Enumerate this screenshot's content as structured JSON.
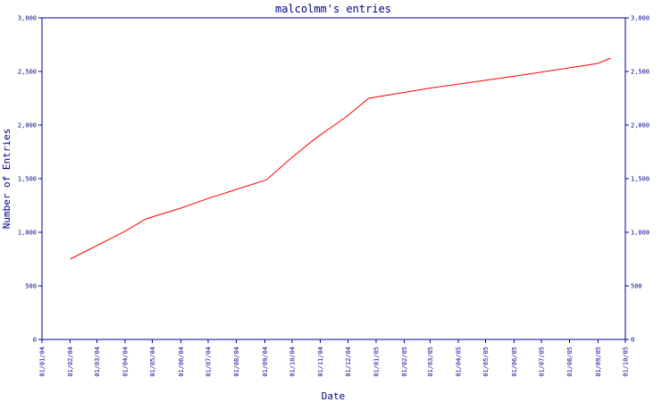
{
  "chart_data": {
    "type": "line",
    "title": "malcolmm's entries",
    "xlabel": "Date",
    "ylabel": "Number of Entries",
    "ylim": [
      0,
      3000
    ],
    "yticks": [
      0,
      500,
      1000,
      1500,
      2000,
      2500,
      3000
    ],
    "ytick_labels": [
      "0",
      "500",
      "1,000",
      "1,500",
      "2,000",
      "2,500",
      "3,000"
    ],
    "xlim": [
      "2004-01-01",
      "2005-10-01"
    ],
    "xtick_dates": [
      "2004-01-01",
      "2004-02-01",
      "2004-03-01",
      "2004-04-01",
      "2004-05-01",
      "2004-06-01",
      "2004-07-01",
      "2004-08-01",
      "2004-09-01",
      "2004-10-01",
      "2004-11-01",
      "2004-12-01",
      "2005-01-01",
      "2005-02-01",
      "2005-03-01",
      "2005-04-01",
      "2005-05-01",
      "2005-06-01",
      "2005-07-01",
      "2005-08-01",
      "2005-09-01",
      "2005-10-01"
    ],
    "xtick_labels": [
      "01/01/04",
      "01/02/04",
      "01/03/04",
      "01/04/04",
      "01/05/04",
      "01/06/04",
      "01/07/04",
      "01/08/04",
      "01/09/04",
      "01/10/04",
      "01/11/04",
      "01/12/04",
      "01/01/05",
      "01/02/05",
      "01/03/05",
      "01/04/05",
      "01/05/05",
      "01/06/05",
      "01/07/05",
      "01/08/05",
      "01/09/05",
      "01/10/05"
    ],
    "grid": false,
    "colors": {
      "axis": "#00008b",
      "series": "#ff0000",
      "background": "#ffffff"
    },
    "series": [
      {
        "x": [
          "2004-02-01",
          "2004-03-01",
          "2004-04-01",
          "2004-04-24",
          "2004-06-01",
          "2004-07-01",
          "2004-08-01",
          "2004-09-03",
          "2004-10-01",
          "2004-10-28",
          "2004-11-29",
          "2004-12-24",
          "2005-03-01",
          "2005-06-01",
          "2005-09-01",
          "2005-09-15"
        ],
        "y": [
          750,
          875,
          1010,
          1125,
          1225,
          1315,
          1400,
          1490,
          1700,
          1885,
          2075,
          2250,
          2345,
          2455,
          2575,
          2625
        ]
      }
    ]
  }
}
